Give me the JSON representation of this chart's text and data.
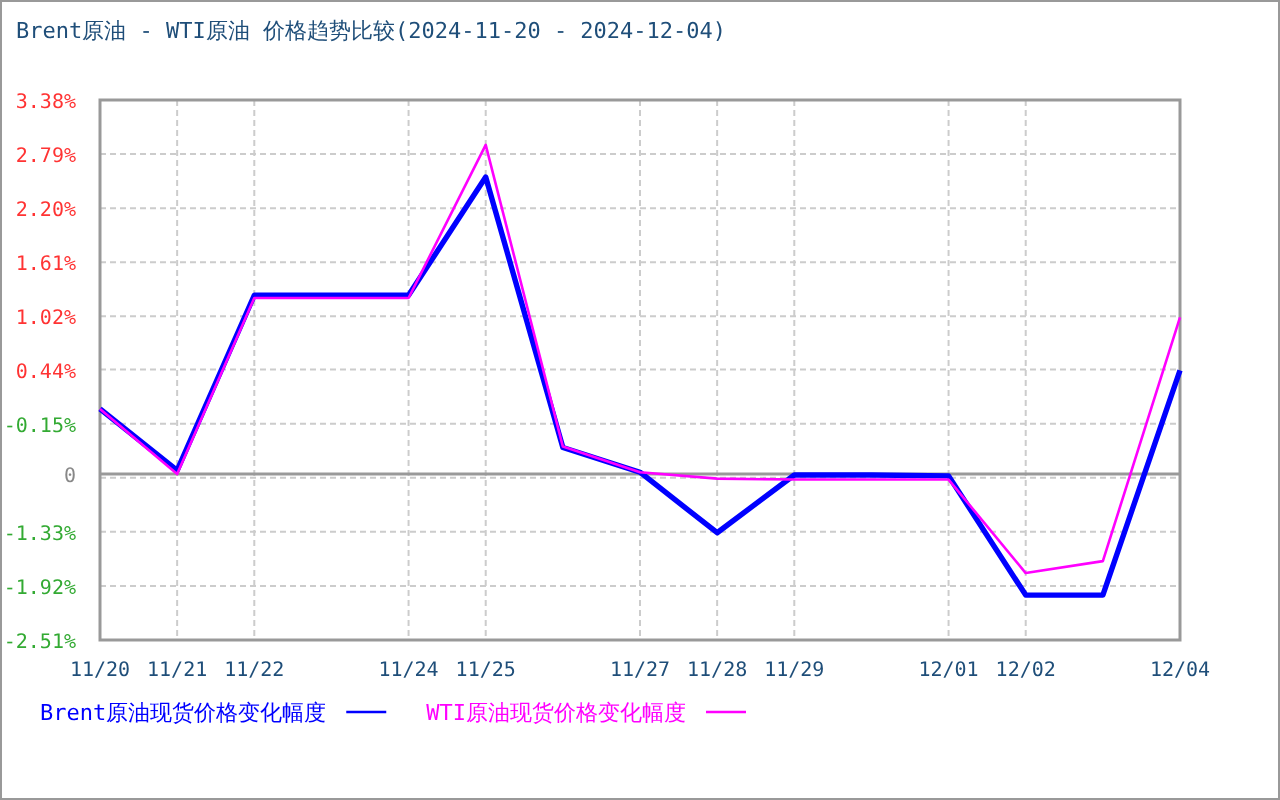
{
  "chart_data": {
    "type": "line",
    "title": "Brent原油 - WTI原油 价格趋势比较(2024-11-20 - 2024-12-04)",
    "categories": [
      "11/20",
      "11/21",
      "11/22",
      null,
      "11/24",
      "11/25",
      null,
      "11/27",
      "11/28",
      "11/29",
      null,
      "12/01",
      "12/02",
      null,
      "12/04"
    ],
    "ylim": [
      -2.51,
      3.38
    ],
    "yticks": [
      {
        "value": 3.38,
        "label": "3.38%"
      },
      {
        "value": 2.79,
        "label": "2.79%"
      },
      {
        "value": 2.2,
        "label": "2.20%"
      },
      {
        "value": 1.61,
        "label": "1.61%"
      },
      {
        "value": 1.02,
        "label": "1.02%"
      },
      {
        "value": 0.44,
        "label": "0.44%"
      },
      {
        "value": -0.15,
        "label": "-0.15%"
      },
      {
        "value": -0.74,
        "label": null
      },
      {
        "value": -1.33,
        "label": "-1.33%"
      },
      {
        "value": -1.92,
        "label": "-1.92%"
      },
      {
        "value": -2.51,
        "label": "-2.51%"
      }
    ],
    "series": [
      {
        "name": "Brent原油现货价格变化幅度",
        "color": "#0000ff",
        "values": [
          0.01,
          -0.66,
          1.25,
          1.25,
          1.25,
          2.54,
          -0.41,
          -0.68,
          -1.34,
          -0.71,
          -0.71,
          -0.72,
          -2.02,
          -2.02,
          0.43
        ]
      },
      {
        "name": "WTI原油现货价格变化幅度",
        "color": "#ff00ff",
        "values": [
          0.01,
          -0.7,
          1.22,
          1.22,
          1.22,
          2.89,
          -0.4,
          -0.68,
          -0.75,
          -0.76,
          -0.76,
          -0.76,
          -1.78,
          -1.65,
          1.01
        ]
      }
    ],
    "ref_lines": [
      {
        "axis": "y",
        "value": -0.7,
        "color": "#999999"
      }
    ],
    "annotations": [
      "0"
    ],
    "grid": true,
    "legend": "bottom left",
    "marker": "none",
    "line_style": "solid"
  }
}
